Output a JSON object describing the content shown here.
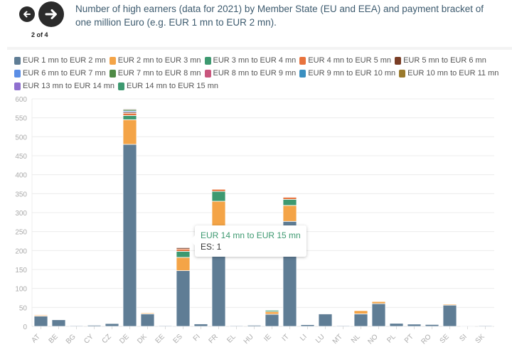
{
  "navigation": {
    "prev_icon": "arrow-left-icon",
    "next_icon": "arrow-right-icon",
    "page_indicator": "2 of 4"
  },
  "title": "Number of high earners (data for 2021) by Member State (EU and EEA) and payment bracket of one million Euro (e.g. EUR 1 mn to EUR 2 mn).",
  "tooltip": {
    "title": "EUR 14 mn to EUR 15 mn",
    "body": "ES: 1"
  },
  "chart_data": {
    "type": "bar",
    "stacked": true,
    "title": "Number of high earners (data for 2021) by Member State (EU and EEA) and payment bracket of one million Euro (e.g. EUR 1 mn to EUR 2 mn).",
    "xlabel": "",
    "ylabel": "",
    "ylim": [
      0,
      600
    ],
    "yticks": [
      0,
      50,
      100,
      150,
      200,
      250,
      300,
      350,
      400,
      450,
      500,
      550,
      600
    ],
    "grid": true,
    "legend_position": "top",
    "categories": [
      "AT",
      "BE",
      "BG",
      "CY",
      "CZ",
      "DE",
      "DK",
      "EE",
      "ES",
      "FI",
      "FR",
      "EL",
      "HU",
      "IE",
      "IT",
      "LI",
      "LU",
      "MT",
      "NL",
      "NO",
      "PL",
      "PT",
      "RO",
      "SE",
      "SI",
      "SK"
    ],
    "highlighted_category": "ES",
    "series": [
      {
        "name": "EUR 1 mn to EUR 2 mn",
        "color": "#5f7d95",
        "values": [
          27,
          18,
          2,
          3,
          8,
          480,
          33,
          2,
          147,
          7,
          195,
          2,
          3,
          32,
          277,
          5,
          33,
          2,
          33,
          60,
          8,
          6,
          5,
          56,
          2,
          2
        ]
      },
      {
        "name": "EUR 2 mn to EUR 3 mn",
        "color": "#f4a447",
        "values": [
          3,
          1,
          0,
          0,
          1,
          65,
          3,
          0,
          35,
          1,
          135,
          0,
          0,
          7,
          42,
          1,
          2,
          0,
          9,
          6,
          0,
          0,
          0,
          3,
          1,
          0
        ]
      },
      {
        "name": "EUR 3 mn to EUR 4 mn",
        "color": "#3d9970",
        "values": [
          1,
          0,
          0,
          0,
          0,
          11,
          1,
          0,
          16,
          0,
          26,
          0,
          0,
          4,
          16,
          1,
          1,
          0,
          1,
          0,
          0,
          0,
          0,
          1,
          0,
          0
        ]
      },
      {
        "name": "EUR 4 mn to EUR 5 mn",
        "color": "#e8733d",
        "values": [
          2,
          1,
          0,
          0,
          1,
          6,
          1,
          0,
          6,
          1,
          6,
          0,
          0,
          1,
          6,
          1,
          1,
          0,
          1,
          1,
          0,
          0,
          0,
          1,
          0,
          0
        ]
      },
      {
        "name": "EUR 5 mn to EUR 6 mn",
        "color": "#7a3e26",
        "values": [
          0,
          0,
          0,
          0,
          0,
          3,
          0,
          0,
          4,
          0,
          0,
          0,
          0,
          0,
          0,
          0,
          0,
          0,
          0,
          0,
          0,
          0,
          0,
          0,
          0,
          0
        ]
      },
      {
        "name": "EUR 6 mn to EUR 7 mn",
        "color": "#5b8ee6",
        "values": [
          1,
          0,
          0,
          0,
          0,
          3,
          0,
          0,
          1,
          0,
          1,
          0,
          0,
          1,
          1,
          1,
          0,
          0,
          0,
          0,
          0,
          0,
          0,
          1,
          0,
          0
        ]
      },
      {
        "name": "EUR 7 mn to EUR 8 mn",
        "color": "#4e8a45",
        "values": [
          0,
          0,
          0,
          0,
          0,
          4,
          0,
          0,
          1,
          0,
          1,
          0,
          0,
          0,
          1,
          0,
          0,
          0,
          0,
          0,
          0,
          0,
          0,
          0,
          0,
          0
        ]
      },
      {
        "name": "EUR 8 mn to EUR 9 mn",
        "color": "#c9567d",
        "values": [
          0,
          0,
          0,
          0,
          0,
          2,
          0,
          0,
          1,
          0,
          1,
          0,
          0,
          0,
          1,
          1,
          0,
          0,
          0,
          0,
          0,
          0,
          0,
          0,
          0,
          0
        ]
      },
      {
        "name": "EUR 9 mn to EUR 10 mn",
        "color": "#3a8fc0",
        "values": [
          0,
          0,
          0,
          0,
          0,
          2,
          0,
          0,
          1,
          0,
          1,
          0,
          0,
          0,
          1,
          0,
          0,
          0,
          0,
          0,
          0,
          0,
          0,
          0,
          0,
          0
        ]
      },
      {
        "name": "EUR 10 mn to EUR 11 mn",
        "color": "#9a7a2c",
        "values": [
          0,
          0,
          0,
          0,
          0,
          1,
          0,
          0,
          1,
          0,
          1,
          0,
          0,
          0,
          1,
          0,
          0,
          0,
          0,
          0,
          0,
          0,
          0,
          0,
          0,
          0
        ]
      },
      {
        "name": "EUR 13 mn to EUR 14 mn",
        "color": "#8f6fcf",
        "values": [
          0,
          0,
          0,
          0,
          0,
          1,
          0,
          0,
          0,
          0,
          1,
          0,
          0,
          0,
          1,
          0,
          0,
          0,
          0,
          0,
          0,
          0,
          0,
          0,
          0,
          0
        ]
      },
      {
        "name": "EUR 14 mn to EUR 15 mn",
        "color": "#3d9970",
        "values": [
          0,
          0,
          0,
          0,
          0,
          1,
          0,
          0,
          1,
          0,
          1,
          0,
          0,
          0,
          1,
          0,
          0,
          0,
          0,
          0,
          0,
          0,
          0,
          0,
          0,
          0
        ]
      }
    ]
  }
}
